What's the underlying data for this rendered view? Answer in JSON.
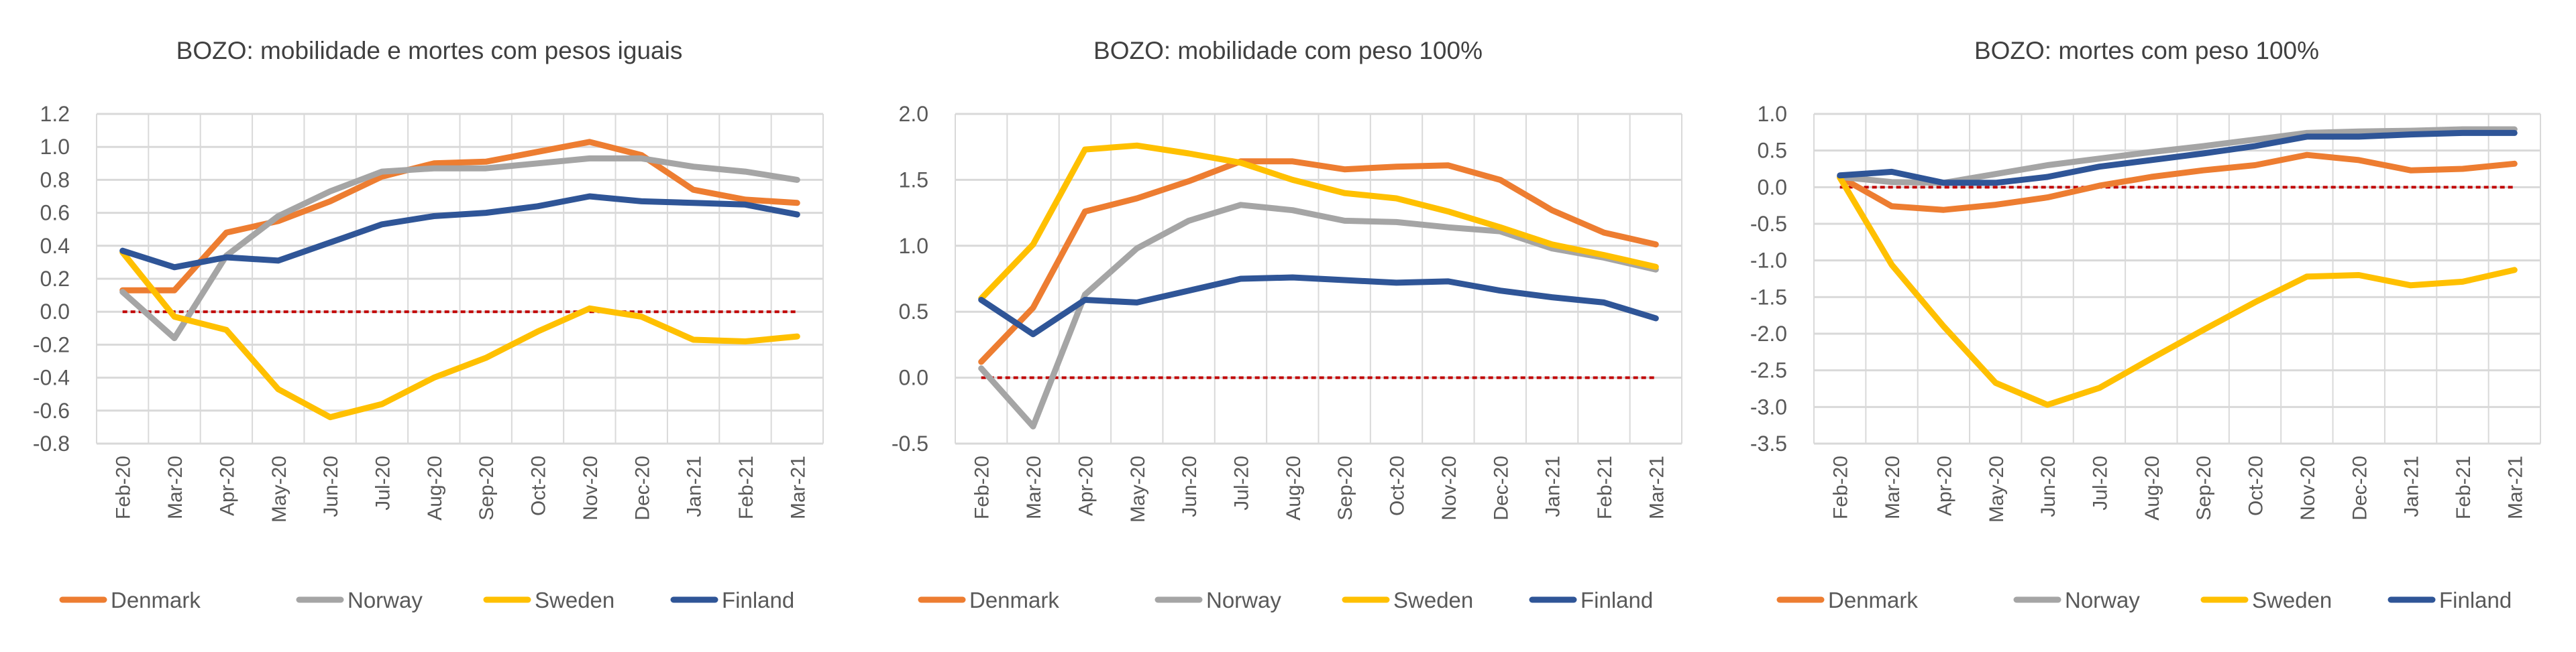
{
  "chart_data": [
    {
      "type": "line",
      "title": "BOZO: mobilidade e mortes com pesos iguais",
      "categories": [
        "Feb-20",
        "Mar-20",
        "Apr-20",
        "May-20",
        "Jun-20",
        "Jul-20",
        "Aug-20",
        "Sep-20",
        "Oct-20",
        "Nov-20",
        "Dec-20",
        "Jan-21",
        "Feb-21",
        "Mar-21"
      ],
      "ylim": [
        -0.8,
        1.2
      ],
      "yticks": [
        1.2,
        1.0,
        0.8,
        0.6,
        0.4,
        0.2,
        0.0,
        -0.2,
        -0.4,
        -0.6,
        -0.8
      ],
      "grid": true,
      "legend": "bottom",
      "reference_line": 0,
      "series": [
        {
          "name": "Denmark",
          "color": "#ED7D31",
          "values": [
            0.13,
            0.13,
            0.48,
            0.55,
            0.67,
            0.82,
            0.9,
            0.91,
            0.97,
            1.03,
            0.95,
            0.74,
            0.68,
            0.66
          ]
        },
        {
          "name": "Norway",
          "color": "#A5A5A5",
          "values": [
            0.12,
            -0.16,
            0.34,
            0.58,
            0.73,
            0.85,
            0.87,
            0.87,
            0.9,
            0.93,
            0.93,
            0.88,
            0.85,
            0.8
          ]
        },
        {
          "name": "Sweden",
          "color": "#FFC000",
          "values": [
            0.36,
            -0.03,
            -0.11,
            -0.47,
            -0.64,
            -0.56,
            -0.4,
            -0.28,
            -0.12,
            0.02,
            -0.03,
            -0.17,
            -0.18,
            -0.15
          ]
        },
        {
          "name": "Finland",
          "color": "#2F5597",
          "values": [
            0.37,
            0.27,
            0.33,
            0.31,
            0.42,
            0.53,
            0.58,
            0.6,
            0.64,
            0.7,
            0.67,
            0.66,
            0.65,
            0.59
          ]
        }
      ]
    },
    {
      "type": "line",
      "title": "BOZO: mobilidade com peso 100%",
      "categories": [
        "Feb-20",
        "Mar-20",
        "Apr-20",
        "May-20",
        "Jun-20",
        "Jul-20",
        "Aug-20",
        "Sep-20",
        "Oct-20",
        "Nov-20",
        "Dec-20",
        "Jan-21",
        "Feb-21",
        "Mar-21"
      ],
      "ylim": [
        -0.5,
        2.0
      ],
      "yticks": [
        2.0,
        1.5,
        1.0,
        0.5,
        0.0,
        -0.5
      ],
      "grid": true,
      "legend": "bottom",
      "reference_line": 0,
      "series": [
        {
          "name": "Denmark",
          "color": "#ED7D31",
          "values": [
            0.12,
            0.53,
            1.26,
            1.36,
            1.49,
            1.64,
            1.64,
            1.58,
            1.6,
            1.61,
            1.5,
            1.27,
            1.1,
            1.01
          ]
        },
        {
          "name": "Norway",
          "color": "#A5A5A5",
          "values": [
            0.07,
            -0.37,
            0.63,
            0.98,
            1.19,
            1.31,
            1.27,
            1.19,
            1.18,
            1.14,
            1.11,
            0.98,
            0.91,
            0.82
          ]
        },
        {
          "name": "Sweden",
          "color": "#FFC000",
          "values": [
            0.6,
            1.01,
            1.73,
            1.76,
            1.7,
            1.63,
            1.5,
            1.4,
            1.36,
            1.26,
            1.14,
            1.01,
            0.93,
            0.84
          ]
        },
        {
          "name": "Finland",
          "color": "#2F5597",
          "values": [
            0.59,
            0.33,
            0.59,
            0.57,
            0.66,
            0.75,
            0.76,
            0.74,
            0.72,
            0.73,
            0.66,
            0.61,
            0.57,
            0.45
          ]
        }
      ]
    },
    {
      "type": "line",
      "title": "BOZO: mortes com peso 100%",
      "categories": [
        "Feb-20",
        "Mar-20",
        "Apr-20",
        "May-20",
        "Jun-20",
        "Jul-20",
        "Aug-20",
        "Sep-20",
        "Oct-20",
        "Nov-20",
        "Dec-20",
        "Jan-21",
        "Feb-21",
        "Mar-21"
      ],
      "ylim": [
        -3.5,
        1.0
      ],
      "yticks": [
        1.0,
        0.5,
        0.0,
        -0.5,
        -1.0,
        -1.5,
        -2.0,
        -2.5,
        -3.0,
        -3.5
      ],
      "grid": true,
      "legend": "bottom",
      "reference_line": 0,
      "series": [
        {
          "name": "Denmark",
          "color": "#ED7D31",
          "values": [
            0.14,
            -0.26,
            -0.31,
            -0.24,
            -0.14,
            0.02,
            0.14,
            0.23,
            0.3,
            0.44,
            0.37,
            0.23,
            0.25,
            0.32
          ]
        },
        {
          "name": "Norway",
          "color": "#A5A5A5",
          "values": [
            0.14,
            0.07,
            0.06,
            0.18,
            0.3,
            0.39,
            0.48,
            0.56,
            0.65,
            0.74,
            0.76,
            0.77,
            0.79,
            0.79
          ]
        },
        {
          "name": "Sweden",
          "color": "#FFC000",
          "values": [
            0.13,
            -1.06,
            -1.9,
            -2.67,
            -2.97,
            -2.74,
            -2.34,
            -1.95,
            -1.57,
            -1.22,
            -1.2,
            -1.34,
            -1.29,
            -1.13
          ]
        },
        {
          "name": "Finland",
          "color": "#2F5597",
          "values": [
            0.16,
            0.21,
            0.06,
            0.06,
            0.14,
            0.28,
            0.37,
            0.46,
            0.56,
            0.69,
            0.69,
            0.72,
            0.74,
            0.74
          ]
        }
      ]
    }
  ],
  "colors": {
    "reference_line": "#C00000",
    "grid": "#D9D9D9",
    "text": "#595959"
  }
}
